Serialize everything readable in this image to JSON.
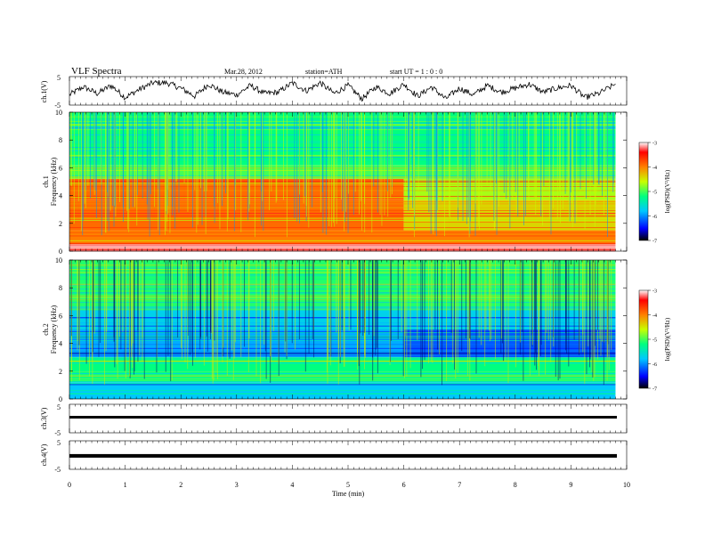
{
  "header": {
    "title": "VLF  Spectra",
    "date": "Mar.28, 2012",
    "station": "station=ATH",
    "start": "start  UT  =   1 : 0  : 0"
  },
  "colors": {
    "scale": [
      "#000000",
      "#0000ff",
      "#00c8ff",
      "#00ff80",
      "#c8ff00",
      "#ff8000",
      "#ff0000",
      "#ffffff"
    ]
  },
  "chart_data": [
    {
      "type": "line",
      "panel": "ch.1 waveform",
      "ylabel": "ch.1(V)",
      "ylim": [
        -5,
        5
      ],
      "yticks": [
        "5",
        "-5"
      ],
      "xlim": [
        0,
        10
      ],
      "x": [
        0.0,
        0.25,
        0.5,
        0.75,
        1.0,
        1.25,
        1.5,
        1.75,
        2.0,
        2.25,
        2.5,
        2.75,
        3.0,
        3.25,
        3.5,
        3.75,
        4.0,
        4.25,
        4.5,
        4.75,
        5.0,
        5.25,
        5.5,
        5.75,
        6.0,
        6.25,
        6.5,
        6.75,
        7.0,
        7.25,
        7.5,
        7.75,
        8.0,
        8.25,
        8.5,
        8.75,
        9.0,
        9.25,
        9.5,
        9.8
      ],
      "y": [
        -1.5,
        1.5,
        -1.0,
        2.0,
        -2.5,
        0.5,
        3.0,
        3.0,
        1.0,
        -2.0,
        2.5,
        -0.5,
        -1.5,
        2.0,
        -1.0,
        -0.5,
        3.0,
        0.0,
        3.0,
        -1.0,
        2.0,
        -3.0,
        1.5,
        -1.0,
        2.5,
        -2.0,
        1.5,
        -3.0,
        1.0,
        -1.5,
        2.0,
        -0.5,
        1.0,
        2.5,
        -0.5,
        1.0,
        2.0,
        -2.5,
        -1.0,
        2.5
      ]
    },
    {
      "type": "heatmap",
      "panel": "ch.1 spectrogram",
      "ylabel": "ch.1\nFrequency  (kHz)",
      "ylim": [
        0,
        10
      ],
      "yticks": [
        0,
        2,
        4,
        6,
        8,
        10
      ],
      "xlim": [
        0,
        10
      ],
      "colorbar": {
        "label": "log(PSD)(V²/Hz)",
        "ticks": [
          -3,
          -4,
          -5,
          -6,
          -7
        ],
        "range": [
          -7,
          -3
        ]
      },
      "bands_log_psd": [
        {
          "f": [
            0,
            0.5
          ],
          "value": -3.2,
          "x_from": 0,
          "x_to": 9.8
        },
        {
          "f": [
            0.5,
            1.5
          ],
          "value": -4.0,
          "x_from": 0,
          "x_to": 9.8
        },
        {
          "f": [
            1.5,
            3.7
          ],
          "value": -3.9,
          "x_from": 0,
          "x_to": 6.0
        },
        {
          "f": [
            1.5,
            3.7
          ],
          "value": -4.4,
          "x_from": 6.0,
          "x_to": 9.8
        },
        {
          "f": [
            3.7,
            5.2
          ],
          "value": -3.9,
          "x_from": 0,
          "x_to": 6.0
        },
        {
          "f": [
            3.7,
            5.2
          ],
          "value": -4.7,
          "x_from": 6.0,
          "x_to": 9.8
        },
        {
          "f": [
            5.2,
            6.2
          ],
          "value": -5.0,
          "x_from": 0,
          "x_to": 9.8
        },
        {
          "f": [
            6.2,
            10
          ],
          "value": -5.2,
          "x_from": 0,
          "x_to": 9.8
        }
      ]
    },
    {
      "type": "heatmap",
      "panel": "ch.2 spectrogram",
      "ylabel": "ch.2\nFrequency  (kHz)",
      "ylim": [
        0,
        10
      ],
      "yticks": [
        0,
        2,
        4,
        6,
        8,
        10
      ],
      "xlim": [
        0,
        10
      ],
      "colorbar": {
        "label": "log(PSD)(V²/Hz)",
        "ticks": [
          -3,
          -4,
          -5,
          -6,
          -7
        ],
        "range": [
          -7,
          -3
        ]
      },
      "bands_log_psd": [
        {
          "f": [
            0,
            1.2
          ],
          "value": -5.8,
          "x_from": 0,
          "x_to": 9.8
        },
        {
          "f": [
            1.2,
            3.0
          ],
          "value": -5.2,
          "x_from": 0,
          "x_to": 9.8
        },
        {
          "f": [
            3.0,
            5.0
          ],
          "value": -5.9,
          "x_from": 0,
          "x_to": 6.0
        },
        {
          "f": [
            3.0,
            5.0
          ],
          "value": -6.2,
          "x_from": 6.0,
          "x_to": 9.8
        },
        {
          "f": [
            5.0,
            6.5
          ],
          "value": -5.7,
          "x_from": 0,
          "x_to": 9.8
        },
        {
          "f": [
            6.5,
            10
          ],
          "value": -5.1,
          "x_from": 0,
          "x_to": 9.8
        }
      ]
    },
    {
      "type": "line",
      "panel": "ch.3 waveform",
      "ylabel": "ch.3(V)",
      "ylim": [
        -5,
        5
      ],
      "yticks": [
        "5",
        "-5"
      ],
      "x": [
        0,
        9.8
      ],
      "y": [
        0.5,
        0.5
      ]
    },
    {
      "type": "line",
      "panel": "ch.4 waveform",
      "ylabel": "ch.4(V)",
      "ylim": [
        -5,
        5
      ],
      "yticks": [
        "5",
        "-5"
      ],
      "x": [
        0,
        9.8
      ],
      "y": [
        -0.3,
        -0.3
      ],
      "xlabel": "Time  (min)",
      "xticks": [
        "0",
        "1",
        "2",
        "3",
        "4",
        "5",
        "6",
        "7",
        "8",
        "9",
        "10"
      ]
    }
  ]
}
